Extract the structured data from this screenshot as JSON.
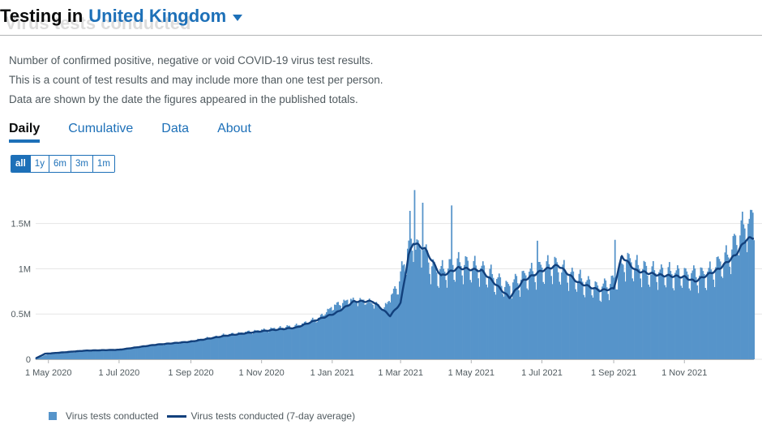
{
  "header": {
    "title_prefix": "Testing in",
    "area": "United Kingdom",
    "ghost": "Virus tests conducted"
  },
  "card": {
    "description": [
      "Number of confirmed positive, negative or void COVID-19 virus test results.",
      "This is a count of test results and may include more than one test per person.",
      "Data are shown by the date the figures appeared in the published totals."
    ],
    "tabs": [
      "Daily",
      "Cumulative",
      "Data",
      "About"
    ],
    "active_tab": "Daily",
    "ranges": [
      "all",
      "1y",
      "6m",
      "3m",
      "1m"
    ],
    "active_range": "all"
  },
  "colors": {
    "bars": "#5694ca",
    "line": "#12407c",
    "accent": "#1d70b8"
  },
  "chart_data": {
    "type": "bar",
    "x_start": "2020-04-20",
    "x_end": "2021-12-31",
    "x_ticks": [
      "1 May 2020",
      "1 Jul 2020",
      "1 Sep 2020",
      "1 Nov 2020",
      "1 Jan 2021",
      "1 Mar 2021",
      "1 May 2021",
      "1 Jul 2021",
      "1 Sep 2021",
      "1 Nov 2021"
    ],
    "y_ticks": [
      "0",
      "0.5M",
      "1M",
      "1.5M"
    ],
    "ylim": [
      0,
      1900000
    ],
    "grid": true,
    "legend_position": "bottom",
    "series": [
      {
        "name": "Virus tests conducted",
        "kind": "bar",
        "anchors": [
          [
            "2020-04-20",
            8000
          ],
          [
            "2020-05-01",
            55000
          ],
          [
            "2020-06-01",
            90000
          ],
          [
            "2020-07-01",
            110000
          ],
          [
            "2020-08-01",
            160000
          ],
          [
            "2020-09-01",
            200000
          ],
          [
            "2020-10-01",
            270000
          ],
          [
            "2020-11-01",
            320000
          ],
          [
            "2020-12-01",
            370000
          ],
          [
            "2020-12-20",
            450000
          ],
          [
            "2021-01-01",
            580000
          ],
          [
            "2021-01-15",
            650000
          ],
          [
            "2021-02-01",
            640000
          ],
          [
            "2021-02-15",
            560000
          ],
          [
            "2021-03-01",
            900000
          ],
          [
            "2021-03-08",
            1250000
          ],
          [
            "2021-03-20",
            1200000
          ],
          [
            "2021-04-01",
            950000
          ],
          [
            "2021-04-20",
            1050000
          ],
          [
            "2021-05-10",
            990000
          ],
          [
            "2021-06-01",
            790000
          ],
          [
            "2021-06-20",
            940000
          ],
          [
            "2021-07-10",
            1040000
          ],
          [
            "2021-08-01",
            880000
          ],
          [
            "2021-08-20",
            770000
          ],
          [
            "2021-09-01",
            860000
          ],
          [
            "2021-09-10",
            1090000
          ],
          [
            "2021-10-01",
            960000
          ],
          [
            "2021-11-01",
            930000
          ],
          [
            "2021-11-20",
            930000
          ],
          [
            "2021-12-10",
            1150000
          ],
          [
            "2021-12-20",
            1430000
          ],
          [
            "2021-12-31",
            1520000
          ]
        ],
        "peaks": [
          [
            "2021-03-13",
            1870000
          ],
          [
            "2021-03-09",
            1640000
          ],
          [
            "2021-03-20",
            1730000
          ],
          [
            "2021-04-14",
            1700000
          ],
          [
            "2021-06-27",
            1310000
          ],
          [
            "2021-09-02",
            1320000
          ],
          [
            "2021-12-29",
            1650000
          ],
          [
            "2021-12-30",
            1620000
          ]
        ]
      },
      {
        "name": "Virus tests conducted (7-day average)",
        "kind": "line",
        "points": [
          [
            "2020-04-20",
            10000
          ],
          [
            "2020-04-28",
            60000
          ],
          [
            "2020-06-01",
            95000
          ],
          [
            "2020-07-01",
            105000
          ],
          [
            "2020-08-01",
            160000
          ],
          [
            "2020-09-01",
            195000
          ],
          [
            "2020-10-01",
            260000
          ],
          [
            "2020-11-01",
            310000
          ],
          [
            "2020-12-01",
            350000
          ],
          [
            "2020-12-22",
            450000
          ],
          [
            "2021-01-04",
            510000
          ],
          [
            "2021-01-20",
            640000
          ],
          [
            "2021-02-05",
            640000
          ],
          [
            "2021-02-20",
            480000
          ],
          [
            "2021-03-01",
            620000
          ],
          [
            "2021-03-08",
            1150000
          ],
          [
            "2021-03-12",
            1290000
          ],
          [
            "2021-03-22",
            1220000
          ],
          [
            "2021-04-05",
            920000
          ],
          [
            "2021-04-20",
            1010000
          ],
          [
            "2021-05-10",
            980000
          ],
          [
            "2021-06-03",
            680000
          ],
          [
            "2021-06-15",
            870000
          ],
          [
            "2021-07-01",
            980000
          ],
          [
            "2021-07-15",
            1040000
          ],
          [
            "2021-08-01",
            850000
          ],
          [
            "2021-08-20",
            760000
          ],
          [
            "2021-09-01",
            780000
          ],
          [
            "2021-09-08",
            1140000
          ],
          [
            "2021-09-20",
            980000
          ],
          [
            "2021-10-10",
            930000
          ],
          [
            "2021-11-01",
            910000
          ],
          [
            "2021-11-10",
            860000
          ],
          [
            "2021-12-01",
            1000000
          ],
          [
            "2021-12-15",
            1150000
          ],
          [
            "2021-12-24",
            1320000
          ],
          [
            "2021-12-31",
            1350000
          ]
        ]
      }
    ]
  }
}
